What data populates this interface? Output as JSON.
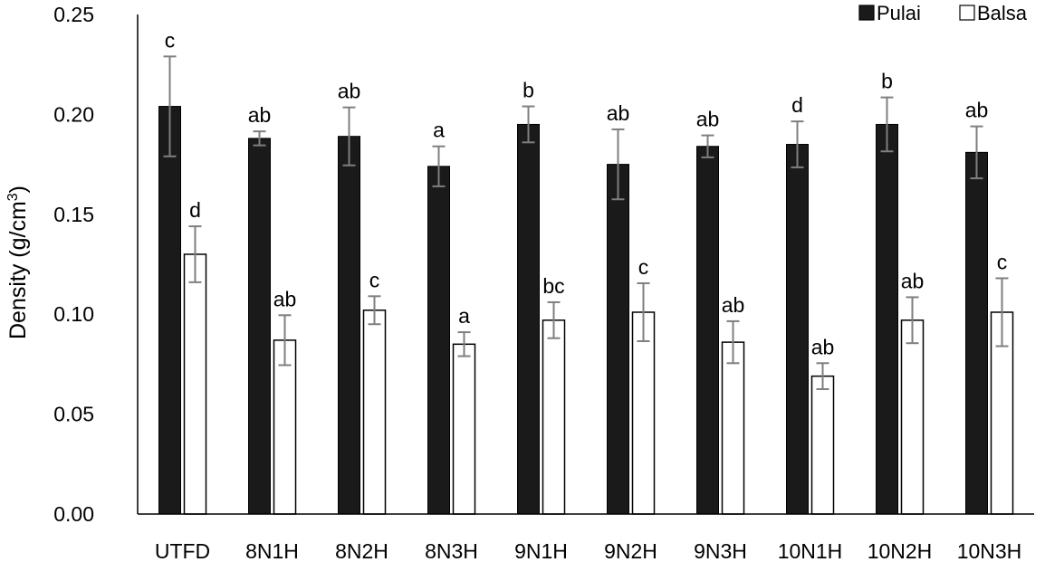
{
  "chart_data": {
    "type": "bar",
    "title": "",
    "xlabel": "",
    "ylabel": "Density (g/cm",
    "ylabel_sup": "3",
    "ylabel_close": ")",
    "ylim": [
      0,
      0.25
    ],
    "yticks": [
      "0.00",
      "0.05",
      "0.10",
      "0.15",
      "0.20",
      "0.25"
    ],
    "legend_position": "top-right",
    "grid": false,
    "categories": [
      "UTFD",
      "8N1H",
      "8N2H",
      "8N3H",
      "9N1H",
      "9N2H",
      "9N3H",
      "10N1H",
      "10N2H",
      "10N3H"
    ],
    "series": [
      {
        "name": "Pulai",
        "color": "#1a1a1a",
        "values": [
          0.204,
          0.188,
          0.189,
          0.174,
          0.195,
          0.175,
          0.184,
          0.185,
          0.195,
          0.181
        ],
        "errors": [
          0.025,
          0.0035,
          0.0145,
          0.01,
          0.009,
          0.0175,
          0.0055,
          0.0115,
          0.0135,
          0.013
        ],
        "labels": [
          "c",
          "ab",
          "ab",
          "a",
          "b",
          "ab",
          "ab",
          "d",
          "b",
          "ab"
        ]
      },
      {
        "name": "Balsa",
        "color": "#ffffff",
        "values": [
          0.13,
          0.087,
          0.102,
          0.085,
          0.097,
          0.101,
          0.086,
          0.069,
          0.097,
          0.101
        ],
        "errors": [
          0.014,
          0.0125,
          0.007,
          0.006,
          0.009,
          0.0145,
          0.0105,
          0.0065,
          0.0115,
          0.017
        ],
        "labels": [
          "d",
          "ab",
          "c",
          "a",
          "bc",
          "c",
          "ab",
          "ab",
          "ab",
          "c"
        ]
      }
    ]
  }
}
